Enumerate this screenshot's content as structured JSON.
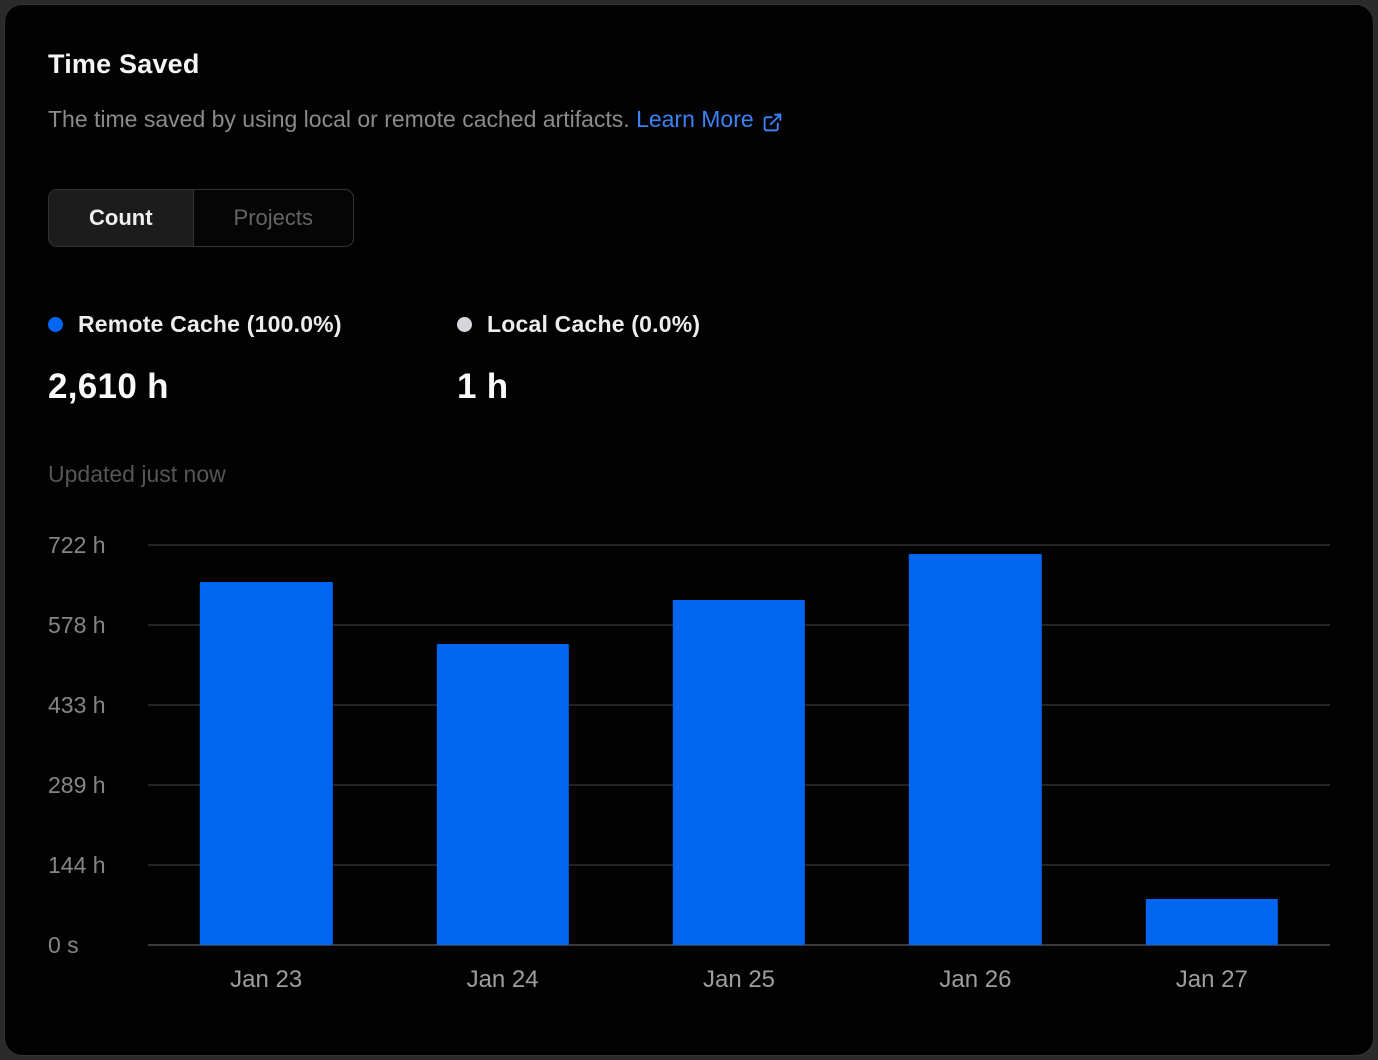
{
  "card": {
    "title": "Time Saved",
    "description": "The time saved by using local or remote cached artifacts.",
    "learn_more_label": "Learn More",
    "updated_text": "Updated just now"
  },
  "toggle": {
    "options": [
      {
        "label": "Count",
        "active": true
      },
      {
        "label": "Projects",
        "active": false
      }
    ]
  },
  "legend": [
    {
      "label": "Remote Cache (100.0%)",
      "value": "2,610 h",
      "color": "#0266f0"
    },
    {
      "label": "Local Cache (0.0%)",
      "value": "1 h",
      "color": "#d6d6db"
    }
  ],
  "chart_data": {
    "type": "bar",
    "title": "Time Saved",
    "categories": [
      "Jan 23",
      "Jan 24",
      "Jan 25",
      "Jan 26",
      "Jan 27"
    ],
    "values": [
      656,
      543,
      623,
      705,
      83
    ],
    "unit": "hours",
    "ylabel": "",
    "xlabel": "",
    "ylim": [
      0,
      722
    ],
    "yticks": [
      {
        "value": 0,
        "label": "0 s"
      },
      {
        "value": 144,
        "label": "144 h"
      },
      {
        "value": 289,
        "label": "289 h"
      },
      {
        "value": 433,
        "label": "433 h"
      },
      {
        "value": 578,
        "label": "578 h"
      },
      {
        "value": 722,
        "label": "722 h"
      }
    ],
    "bar_color": "#0266f0",
    "grid": true,
    "legend_position": "top"
  },
  "colors": {
    "card_background": "#020202",
    "card_border": "#343434",
    "accent_blue": "#0266f0",
    "link_blue": "#3b82f6",
    "grid_color": "#242424"
  }
}
